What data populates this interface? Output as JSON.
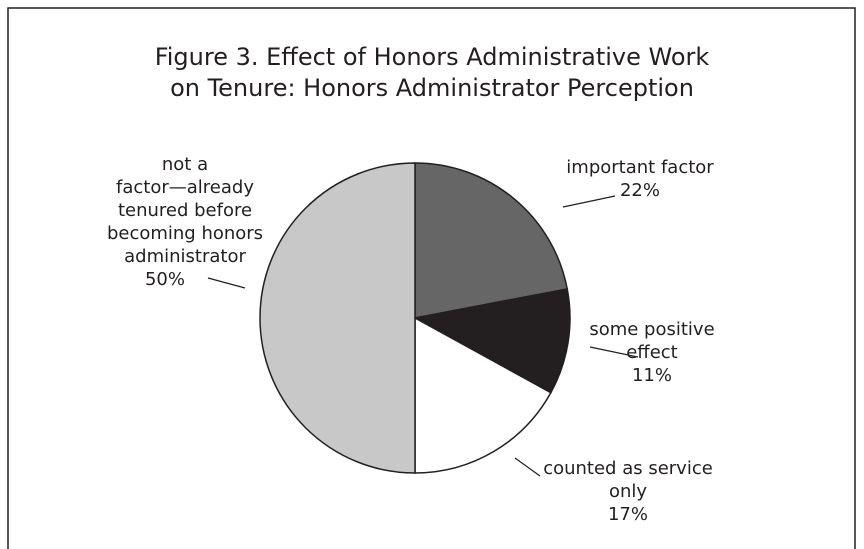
{
  "chart_data": {
    "type": "pie",
    "title": [
      "Figure 3. Effect of Honors Administrative Work",
      "on Tenure: Honors Administrator Perception"
    ],
    "categories": [
      [
        "important factor"
      ],
      [
        "some positive",
        "effect"
      ],
      [
        "counted as service",
        "only"
      ],
      [
        "not a",
        "factor—already",
        "tenured before",
        "becoming honors",
        "administrator"
      ]
    ],
    "values": [
      22,
      11,
      17,
      50
    ],
    "value_labels": [
      "22%",
      "11%",
      "17%",
      "50%"
    ],
    "colors": [
      "#666666",
      "#231f20",
      "#ffffff",
      "#c8c8c8"
    ]
  }
}
